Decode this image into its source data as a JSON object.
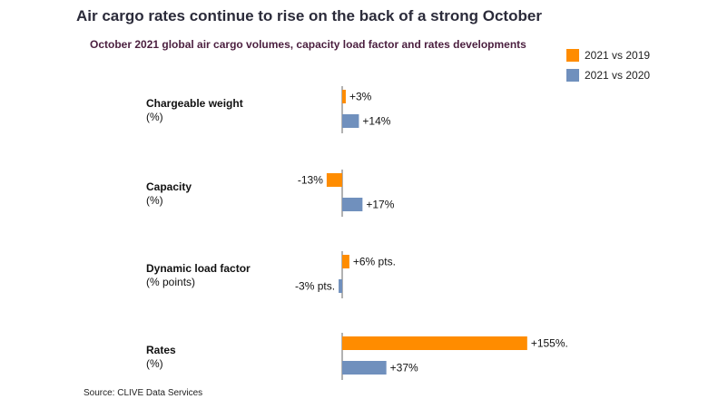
{
  "title": "Air cargo rates continue to rise on the back of a strong October",
  "subtitle": "October 2021 global air cargo volumes, capacity load factor and rates developments",
  "source": "Source: CLIVE Data Services",
  "chart_data": {
    "type": "bar",
    "orientation": "horizontal",
    "title": "Air cargo rates continue to rise on the back of a strong October",
    "subtitle": "October 2021 global air cargo volumes, capacity load factor and rates developments",
    "legend_position": "top-right",
    "grid": false,
    "categories": [
      {
        "name": "Chargeable weight",
        "unit": "(%)"
      },
      {
        "name": "Capacity",
        "unit": "(%)"
      },
      {
        "name": "Dynamic load factor",
        "unit": "(% points)"
      },
      {
        "name": "Rates",
        "unit": "(%)"
      }
    ],
    "series": [
      {
        "name": "2021 vs 2019",
        "color": "#ff8c00",
        "values": [
          3,
          -13,
          6,
          155
        ],
        "labels": [
          "+3%",
          "-13%",
          "+6% pts.",
          "+155%."
        ]
      },
      {
        "name": "2021 vs 2020",
        "color": "#7090bd",
        "values": [
          14,
          17,
          -3,
          37
        ],
        "labels": [
          "+14%",
          "+17%",
          "-3% pts.",
          "+37%"
        ]
      }
    ]
  }
}
